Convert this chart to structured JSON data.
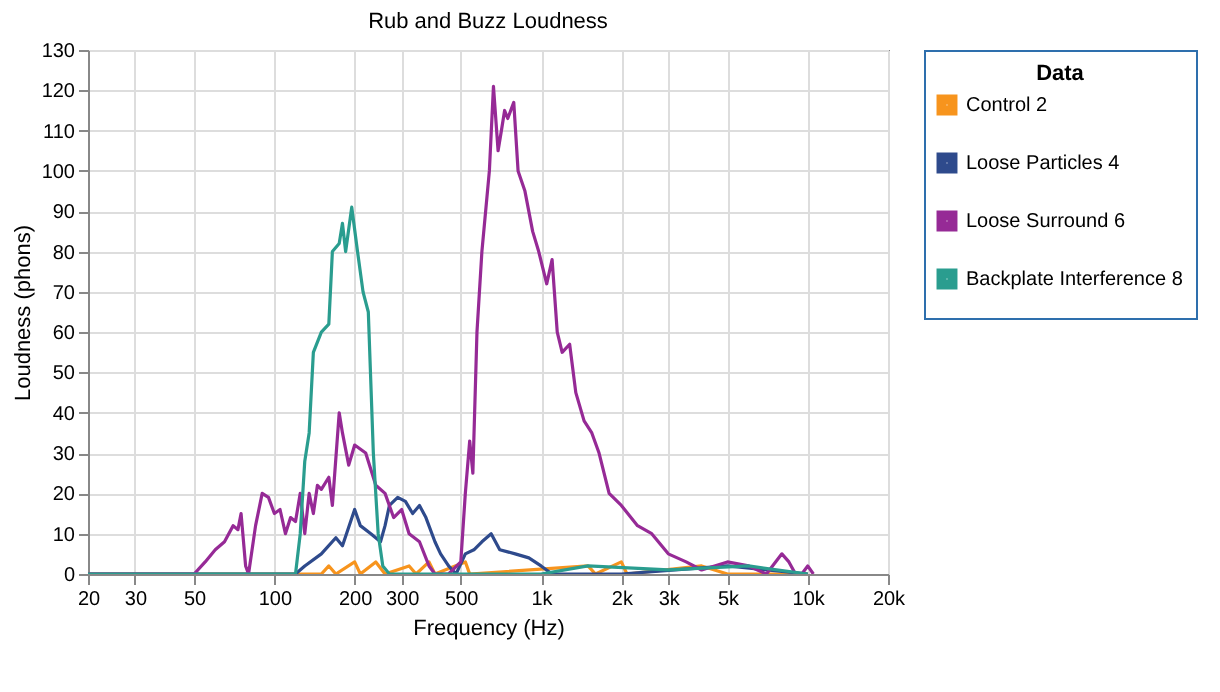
{
  "chart_data": {
    "type": "line",
    "title": "Rub and Buzz Loudness",
    "xlabel": "Frequency (Hz)",
    "ylabel": "Loudness (phons)",
    "legend_title": "Data",
    "legend": "right",
    "grid": true,
    "log": "x",
    "line_style": "solid",
    "marker": "none",
    "xlim": [
      20,
      20000
    ],
    "xticks": [
      20,
      30,
      50,
      100,
      200,
      300,
      500,
      {
        "value": 1000,
        "label": "1k"
      },
      {
        "value": 2000,
        "label": "2k"
      },
      {
        "value": 3000,
        "label": "3k"
      },
      {
        "value": 5000,
        "label": "5k"
      },
      {
        "value": 10000,
        "label": "10k"
      },
      {
        "value": 20000,
        "label": "20k"
      }
    ],
    "ylim": [
      0,
      130
    ],
    "yticks": [
      0,
      10,
      20,
      30,
      40,
      50,
      60,
      70,
      80,
      90,
      100,
      110,
      120,
      130
    ],
    "series": [
      {
        "name": "Control 2",
        "color": "#f7941d",
        "x": [
          20,
          100,
          150,
          160,
          170,
          200,
          210,
          240,
          260,
          320,
          340,
          380,
          400,
          520,
          540,
          1500,
          1600,
          2000,
          2100,
          4000,
          5000,
          10000
        ],
        "values": [
          0,
          0,
          0,
          2,
          0,
          3,
          0,
          3,
          0,
          2,
          0,
          3,
          0,
          3,
          0,
          2,
          0,
          3,
          0,
          2,
          0,
          0
        ]
      },
      {
        "name": "Loose Particles 4",
        "color": "#2e4a8c",
        "x": [
          20,
          60,
          120,
          130,
          150,
          170,
          180,
          200,
          210,
          230,
          250,
          260,
          270,
          290,
          310,
          330,
          350,
          370,
          400,
          420,
          450,
          480,
          520,
          560,
          600,
          650,
          700,
          800,
          900,
          1000,
          1100,
          2000,
          5000,
          10000
        ],
        "values": [
          0,
          0,
          0,
          2,
          5,
          9,
          7,
          16,
          12,
          10,
          8,
          12,
          17,
          19,
          18,
          15,
          17,
          14,
          8,
          5,
          2,
          0,
          5,
          6,
          8,
          10,
          6,
          5,
          4,
          2,
          0,
          0,
          2,
          0
        ]
      },
      {
        "name": "Loose Surround 6",
        "color": "#962a96",
        "x": [
          20,
          50,
          55,
          60,
          65,
          70,
          73,
          75,
          78,
          80,
          85,
          90,
          95,
          100,
          105,
          110,
          115,
          120,
          125,
          130,
          135,
          140,
          145,
          150,
          160,
          165,
          175,
          180,
          190,
          200,
          220,
          240,
          260,
          280,
          300,
          320,
          350,
          380,
          400,
          450,
          500,
          520,
          540,
          555,
          575,
          600,
          640,
          663,
          690,
          710,
          730,
          750,
          790,
          820,
          870,
          930,
          980,
          1050,
          1100,
          1150,
          1200,
          1280,
          1350,
          1450,
          1550,
          1650,
          1800,
          2000,
          2300,
          2600,
          3000,
          3500,
          4000,
          5000,
          6000,
          7000,
          8000,
          8500,
          9000,
          9500,
          10000,
          10500
        ],
        "values": [
          0,
          0,
          3,
          6,
          8,
          12,
          11,
          15,
          2,
          0,
          12,
          20,
          19,
          15,
          16,
          10,
          14,
          13,
          20,
          10,
          20,
          15,
          22,
          21,
          24,
          17,
          40,
          35,
          27,
          32,
          30,
          22,
          20,
          14,
          16,
          10,
          8,
          2,
          0,
          0,
          3,
          20,
          33,
          25,
          60,
          80,
          100,
          121,
          105,
          110,
          115,
          113,
          117,
          100,
          95,
          85,
          80,
          72,
          78,
          60,
          55,
          57,
          45,
          38,
          35,
          30,
          20,
          17,
          12,
          10,
          5,
          3,
          1,
          3,
          2,
          0,
          5,
          3,
          0,
          0,
          2,
          0
        ]
      },
      {
        "name": "Backplate Interference 8",
        "color": "#2a9d8f",
        "x": [
          20,
          100,
          120,
          125,
          130,
          135,
          140,
          150,
          160,
          165,
          175,
          180,
          185,
          195,
          205,
          215,
          225,
          235,
          245,
          255,
          270,
          1000,
          1500,
          3000,
          6000,
          10000
        ],
        "values": [
          0,
          0,
          0,
          10,
          28,
          35,
          55,
          60,
          62,
          80,
          82,
          87,
          80,
          91,
          80,
          70,
          65,
          30,
          10,
          2,
          0,
          0,
          2,
          1,
          2,
          0
        ]
      }
    ]
  }
}
